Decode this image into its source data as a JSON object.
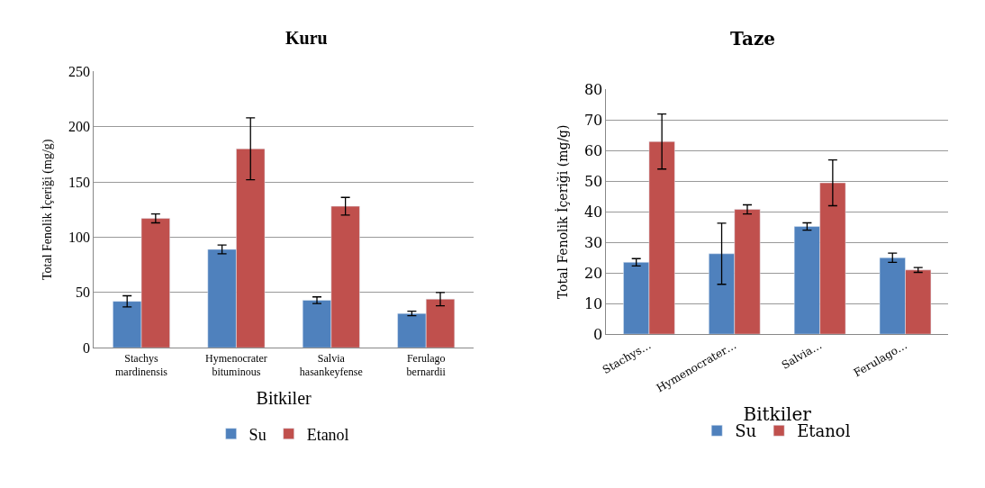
{
  "chart_data": [
    {
      "type": "bar",
      "title": "Kuru",
      "xlabel": "Bitkiler",
      "ylabel": "Total Fenolik İçeriği (mg/g)",
      "categories": [
        "Stachys mardinensis",
        "Hymenocrater bituminous",
        "Salvia hasankeyfense",
        "Ferulago bernardii"
      ],
      "series": [
        {
          "name": "Su",
          "color": "#4f81bd",
          "values": [
            42,
            89,
            43,
            31
          ],
          "errors": [
            5,
            4,
            3,
            2
          ]
        },
        {
          "name": "Etanol",
          "color": "#c0504d",
          "values": [
            117,
            180,
            128,
            44
          ],
          "errors": [
            4,
            28,
            8,
            6
          ]
        }
      ],
      "ylim": [
        0,
        250
      ],
      "yticks": [
        0,
        50,
        100,
        150,
        200,
        250
      ],
      "grid": "y",
      "legend": "bottom"
    },
    {
      "type": "bar",
      "title": "Taze",
      "xlabel": "Bitkiler",
      "ylabel": "Total Fenolik İçeriği (mg/g)",
      "categories": [
        "Stachys…",
        "Hymenocrater…",
        "Salvia…",
        "Ferulago…"
      ],
      "series": [
        {
          "name": "Su",
          "color": "#4f81bd",
          "values": [
            23.5,
            26.3,
            35.2,
            25
          ],
          "errors": [
            1.2,
            10,
            1.2,
            1.5
          ]
        },
        {
          "name": "Etanol",
          "color": "#c0504d",
          "values": [
            63,
            40.8,
            49.5,
            21
          ],
          "errors": [
            9,
            1.5,
            7.5,
            0.8
          ]
        }
      ],
      "ylim": [
        0,
        80
      ],
      "yticks": [
        0,
        10,
        20,
        30,
        40,
        50,
        60,
        70,
        80
      ],
      "grid": "y",
      "legend": "bottom"
    }
  ]
}
